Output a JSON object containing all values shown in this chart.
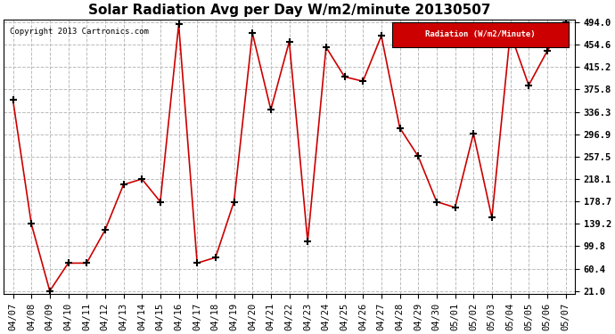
{
  "title": "Solar Radiation Avg per Day W/m2/minute 20130507",
  "copyright": "Copyright 2013 Cartronics.com",
  "legend_label": "Radiation (W/m2/Minute)",
  "dates": [
    "04/07",
    "04/08",
    "04/09",
    "04/10",
    "04/11",
    "04/12",
    "04/13",
    "04/14",
    "04/15",
    "04/16",
    "04/17",
    "04/18",
    "04/19",
    "04/20",
    "04/21",
    "04/22",
    "04/23",
    "04/24",
    "04/25",
    "04/26",
    "04/27",
    "04/28",
    "04/29",
    "04/30",
    "05/01",
    "05/02",
    "05/03",
    "05/04",
    "05/05",
    "05/06",
    "05/07"
  ],
  "values": [
    357,
    139,
    21,
    70,
    70,
    128,
    208,
    218,
    178,
    490,
    70,
    80,
    178,
    475,
    340,
    460,
    108,
    450,
    398,
    390,
    470,
    308,
    258,
    178,
    168,
    298,
    150,
    475,
    383,
    443,
    494
  ],
  "yticks": [
    21.0,
    60.4,
    99.8,
    139.2,
    178.7,
    218.1,
    257.5,
    296.9,
    336.3,
    375.8,
    415.2,
    454.6,
    494.0
  ],
  "line_color": "#cc0000",
  "marker": "+",
  "marker_color": "#000000",
  "marker_size": 6,
  "marker_lw": 1.5,
  "line_width": 1.2,
  "bg_color": "#ffffff",
  "grid_color": "#bbbbbb",
  "grid_style": "--",
  "title_fontsize": 11,
  "tick_fontsize": 7.5,
  "legend_bg": "#cc0000",
  "legend_fg": "#ffffff",
  "ylim_min": 21.0,
  "ylim_max": 494.0
}
